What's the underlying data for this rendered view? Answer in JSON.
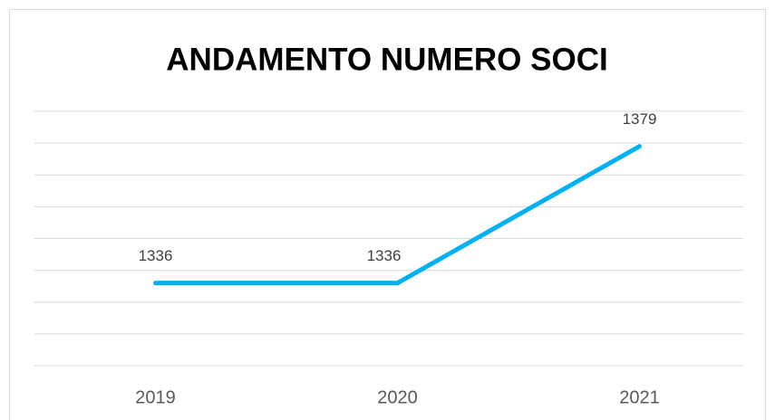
{
  "chart_data": {
    "type": "line",
    "title": "ANDAMENTO NUMERO SOCI",
    "categories": [
      "2019",
      "2020",
      "2021"
    ],
    "series": [
      {
        "color": "#00b0f0",
        "values": [
          1336,
          1336,
          1379
        ]
      }
    ],
    "ylim": [
      1310,
      1390
    ],
    "yticks": [
      1310,
      1320,
      1330,
      1340,
      1350,
      1360,
      1370,
      1380,
      1390
    ],
    "grid": true
  }
}
